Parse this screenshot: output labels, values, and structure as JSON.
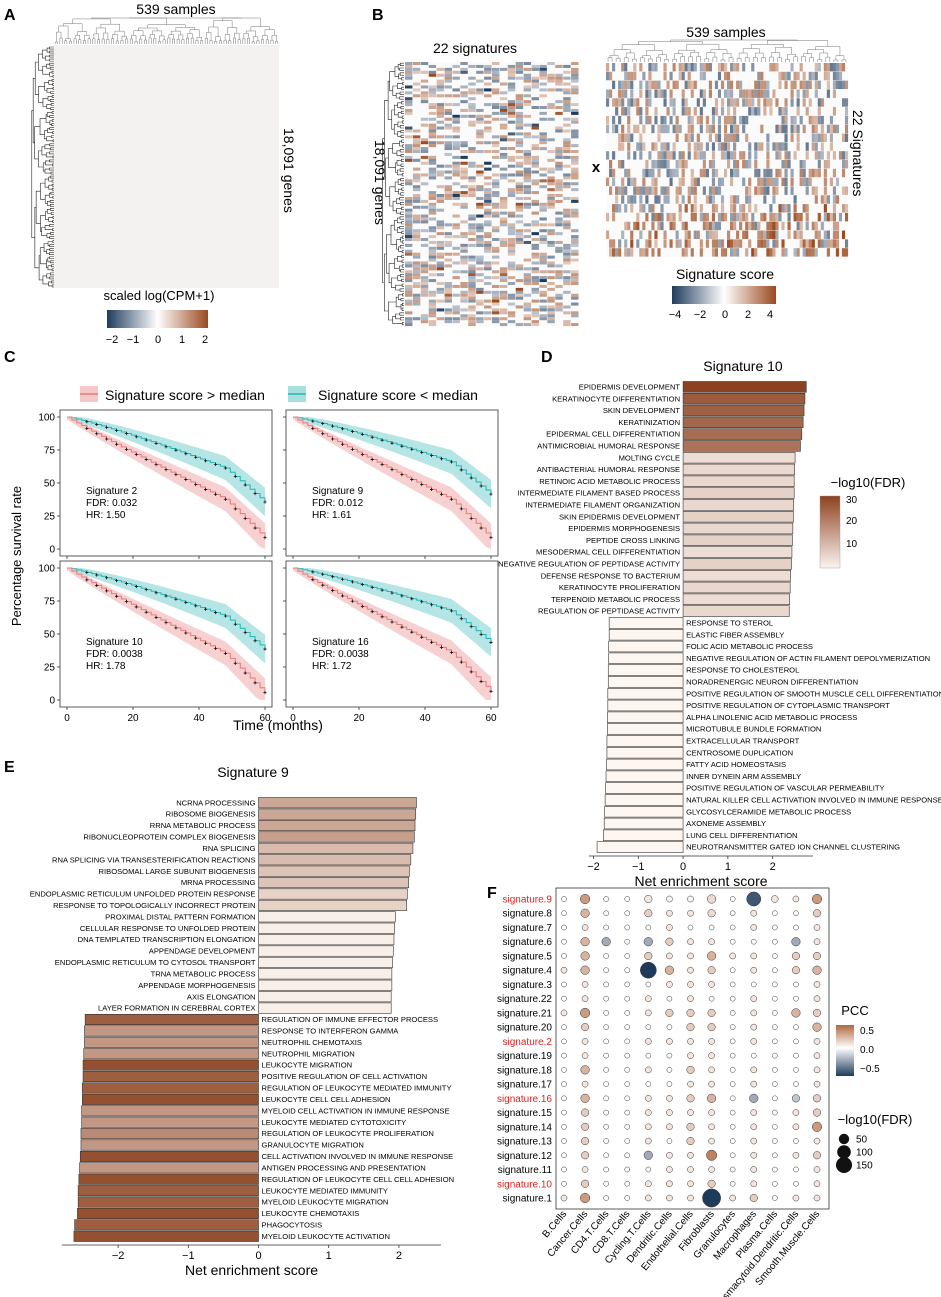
{
  "panels": {
    "A": {
      "letter": "A",
      "top_label": "539 samples",
      "side_label": "18,091 genes",
      "colorbar_title": "scaled log(CPM+1)",
      "colorbar_ticks": [
        "−2",
        "−1",
        "0",
        "1",
        "2"
      ]
    },
    "B": {
      "letter": "B",
      "left_top_label": "22 signatures",
      "left_side_label": "18,091 genes",
      "operator": "x",
      "right_top_label": "539 samples",
      "right_side_label": "22 Signatures",
      "colorbar_title": "Signature score",
      "colorbar_ticks": [
        "−4",
        "−2",
        "0",
        "2",
        "4"
      ]
    },
    "C": {
      "letter": "C",
      "legend": [
        "Signature score > median",
        "Signature score < median"
      ],
      "ylabel": "Percentage survival rate",
      "xlabel": "Time (months)",
      "yticks": [
        "100",
        "75",
        "50",
        "25",
        "0"
      ],
      "xticks": [
        "0",
        "20",
        "40",
        "60"
      ],
      "subplots": [
        {
          "name": "Signature 2",
          "fdr": "FDR: 0.032",
          "hr": "HR: 1.50"
        },
        {
          "name": "Signature 9",
          "fdr": "FDR: 0.012",
          "hr": "HR: 1.61"
        },
        {
          "name": "Signature 10",
          "fdr": "FDR: 0.0038",
          "hr": "HR: 1.78"
        },
        {
          "name": "Signature 16",
          "fdr": "FDR: 0.0038",
          "hr": "HR: 1.72"
        }
      ]
    },
    "D": {
      "letter": "D"
    },
    "E": {
      "letter": "E"
    },
    "F": {
      "letter": "F"
    }
  },
  "colors": {
    "high": "#e8787a",
    "high_fill": "#f6c9c9",
    "low": "#2bb3b3",
    "low_fill": "#a8e0e0",
    "neg": "#2b4a6f",
    "pos": "#9b4a1f"
  },
  "chart_data": [
    {
      "id": "D",
      "type": "bar",
      "orientation": "horizontal",
      "title": "Signature 10",
      "xlabel": "Net enrichment score",
      "xlim": [
        -2.1,
        2.9
      ],
      "xticks": [
        -2,
        -1,
        0,
        1,
        2
      ],
      "legend_title": "−log10(FDR)",
      "legend_ticks": [
        "30",
        "20",
        "10"
      ],
      "legend_range": [
        3,
        30
      ],
      "categories": [
        "EPIDERMIS DEVELOPMENT",
        "KERATINOCYTE DIFFERENTIATION",
        "SKIN DEVELOPMENT",
        "KERATINIZATION",
        "EPIDERMAL CELL DIFFERENTIATION",
        "ANTIMICROBIAL HUMORAL RESPONSE",
        "MOLTING CYCLE",
        "ANTIBACTERIAL HUMORAL RESPONSE",
        "RETINOIC ACID METABOLIC PROCESS",
        "INTERMEDIATE FILAMENT BASED PROCESS",
        "INTERMEDIATE FILAMENT ORGANIZATION",
        "SKIN EPIDERMIS DEVELOPMENT",
        "EPIDERMIS MORPHOGENESIS",
        "PEPTIDE CROSS LINKING",
        "MESODERMAL CELL DIFFERENTIATION",
        "NEGATIVE REGULATION OF PEPTIDASE ACTIVITY",
        "DEFENSE RESPONSE TO BACTERIUM",
        "KERATINOCYTE PROLIFERATION",
        "TERPENOID METABOLIC PROCESS",
        "REGULATION OF PEPTIDASE ACTIVITY",
        "RESPONSE TO STEROL",
        "ELASTIC FIBER ASSEMBLY",
        "FOLIC ACID METABOLIC PROCESS",
        "NEGATIVE REGULATION OF ACTIN FILAMENT DEPOLYMERIZATION",
        "RESPONSE TO CHOLESTEROL",
        "NORADRENERGIC NEURON DIFFERENTIATION",
        "POSITIVE REGULATION OF SMOOTH MUSCLE CELL DIFFERENTIATION",
        "POSITIVE REGULATION OF CYTOPLASMIC TRANSPORT",
        "ALPHA LINOLENIC ACID METABOLIC PROCESS",
        "MICROTUBULE BUNDLE FORMATION",
        "EXTRACELLULAR TRANSPORT",
        "CENTROSOME DUPLICATION",
        "FATTY ACID HOMEOSTASIS",
        "INNER DYNEIN ARM ASSEMBLY",
        "POSITIVE REGULATION OF VASCULAR PERMEABILITY",
        "NATURAL KILLER CELL ACTIVATION INVOLVED IN IMMUNE RESPONSE",
        "GLYCOSYLCERAMIDE METABOLIC PROCESS",
        "AXONEME ASSEMBLY",
        "LUNG CELL DIFFERENTIATION",
        "NEUROTRANSMITTER GATED ION CHANNEL CLUSTERING"
      ],
      "values": [
        2.75,
        2.72,
        2.7,
        2.68,
        2.65,
        2.62,
        2.5,
        2.49,
        2.48,
        2.48,
        2.47,
        2.46,
        2.45,
        2.44,
        2.43,
        2.42,
        2.4,
        2.39,
        2.38,
        2.37,
        -1.65,
        -1.65,
        -1.66,
        -1.66,
        -1.67,
        -1.67,
        -1.68,
        -1.68,
        -1.69,
        -1.69,
        -1.7,
        -1.7,
        -1.71,
        -1.72,
        -1.73,
        -1.74,
        -1.75,
        -1.76,
        -1.78,
        -1.92
      ],
      "fdr": [
        30,
        26,
        25,
        24,
        23,
        22,
        5,
        6,
        6,
        7,
        6,
        7,
        6,
        7,
        5,
        7,
        5,
        6,
        5,
        6,
        1,
        1,
        1,
        1,
        1,
        1,
        1,
        1,
        1,
        1,
        1,
        1,
        1,
        1,
        1,
        1,
        1,
        1,
        1,
        1
      ]
    },
    {
      "id": "E",
      "type": "bar",
      "orientation": "horizontal",
      "title": "Signature 9",
      "xlabel": "Net enrichment score",
      "xlim": [
        -2.8,
        2.6
      ],
      "xticks": [
        -2,
        -1,
        0,
        1,
        2
      ],
      "categories": [
        "NCRNA PROCESSING",
        "RIBOSOME BIOGENESIS",
        "RRNA METABOLIC PROCESS",
        "RIBONUCLEOPROTEIN COMPLEX BIOGENESIS",
        "RNA SPLICING",
        "RNA SPLICING VIA TRANSESTERIFICATION REACTIONS",
        "RIBOSOMAL LARGE SUBUNIT BIOGENESIS",
        "MRNA PROCESSING",
        "ENDOPLASMIC RETICULUM UNFOLDED PROTEIN RESPONSE",
        "RESPONSE TO TOPOLOGICALLY INCORRECT PROTEIN",
        "PROXIMAL DISTAL PATTERN FORMATION",
        "CELLULAR RESPONSE TO UNFOLDED PROTEIN",
        "DNA TEMPLATED TRANSCRIPTION ELONGATION",
        "APPENDAGE DEVELOPMENT",
        "ENDOPLASMIC RETICULUM TO CYTOSOL TRANSPORT",
        "TRNA METABOLIC PROCESS",
        "APPENDAGE MORPHOGENESIS",
        "AXIS ELONGATION",
        "LAYER FORMATION IN CEREBRAL CORTEX",
        "REGULATION OF IMMUNE EFFECTOR PROCESS",
        "RESPONSE TO INTERFERON GAMMA",
        "NEUTROPHIL CHEMOTAXIS",
        "NEUTROPHIL MIGRATION",
        "LEUKOCYTE MIGRATION",
        "POSITIVE REGULATION OF CELL ACTIVATION",
        "REGULATION OF LEUKOCYTE MEDIATED IMMUNITY",
        "LEUKOCYTE CELL CELL ADHESION",
        "MYELOID CELL ACTIVATION IN IMMUNE RESPONSE",
        "LEUKOCYTE MEDIATED CYTOTOXICITY",
        "REGULATION OF LEUKOCYTE PROLIFERATION",
        "GRANULOCYTE MIGRATION",
        "CELL ACTIVATION INVOLVED IN IMMUNE RESPONSE",
        "ANTIGEN PROCESSING AND PRESENTATION",
        "REGULATION OF LEUKOCYTE CELL CELL ADHESION",
        "LEUKOCYTE MEDIATED IMMUNITY",
        "MYELOID LEUKOCYTE MIGRATION",
        "LEUKOCYTE CHEMOTAXIS",
        "PHAGOCYTOSIS",
        "MYELOID LEUKOCYTE ACTIVATION"
      ],
      "values": [
        2.25,
        2.24,
        2.23,
        2.22,
        2.2,
        2.17,
        2.15,
        2.14,
        2.12,
        2.11,
        1.95,
        1.94,
        1.93,
        1.92,
        1.91,
        1.9,
        1.9,
        1.89,
        1.89,
        -2.47,
        -2.48,
        -2.48,
        -2.49,
        -2.5,
        -2.5,
        -2.51,
        -2.51,
        -2.52,
        -2.52,
        -2.53,
        -2.53,
        -2.54,
        -2.55,
        -2.56,
        -2.57,
        -2.57,
        -2.58,
        -2.62,
        -2.63
      ],
      "fdr": [
        12,
        12,
        12,
        13,
        9,
        9,
        8,
        8,
        6,
        6,
        2,
        2,
        2,
        2,
        2,
        2,
        2,
        2,
        2,
        22,
        14,
        14,
        14,
        24,
        22,
        22,
        24,
        14,
        14,
        16,
        14,
        24,
        14,
        24,
        22,
        22,
        24,
        22,
        24
      ]
    },
    {
      "id": "F",
      "type": "scatter",
      "subtype": "dot-matrix",
      "rows": [
        "signature.9",
        "signature.8",
        "signature.7",
        "signature.6",
        "signature.5",
        "signature.4",
        "signature.3",
        "signature.22",
        "signature.21",
        "signature.20",
        "signature.2",
        "signature.19",
        "signature.18",
        "signature.17",
        "signature.16",
        "signature.15",
        "signature.14",
        "signature.13",
        "signature.12",
        "signature.11",
        "signature.10",
        "signature.1"
      ],
      "highlighted_rows": [
        "signature.9",
        "signature.2",
        "signature.16",
        "signature.10"
      ],
      "columns": [
        "B.Cells",
        "Cancer.Cells",
        "CD4.T.Cells",
        "CD8.T.Cells",
        "Cycling.T.Cells",
        "Dendritic.Cells",
        "Endothelial.Cells",
        "Fibroblasts",
        "Granulocytes",
        "Macrophages",
        "Plasma.Cells",
        "Plasmacytoid.Dendritic.Cells",
        "Smooth.Muscle.Cells"
      ],
      "pcc_range": [
        -0.7,
        0.6
      ],
      "color_legend_title": "PCC",
      "color_legend_ticks": [
        "0.5",
        "0.0",
        "−0.5"
      ],
      "size_legend_title": "−log10(FDR)",
      "size_legend_values": [
        50,
        100,
        150
      ],
      "pcc": [
        [
          0,
          0.4,
          0,
          0,
          0.1,
          0.05,
          0.05,
          0.15,
          0,
          -0.6,
          0.1,
          0.1,
          0.4
        ],
        [
          0,
          0.3,
          0,
          0,
          0.2,
          0.1,
          0.1,
          0.15,
          0,
          0.1,
          0,
          0,
          0.2
        ],
        [
          0,
          0.1,
          0,
          0,
          0,
          0.1,
          0,
          0,
          0,
          0.1,
          0,
          0,
          0.1
        ],
        [
          0,
          0.3,
          -0.3,
          0,
          -0.3,
          0.2,
          0.1,
          0.1,
          0,
          0,
          0,
          -0.3,
          0.1
        ],
        [
          0,
          0.3,
          0,
          0,
          0.2,
          0.1,
          0.1,
          0.3,
          0.1,
          0.1,
          0,
          0.2,
          0.2
        ],
        [
          0.1,
          0.3,
          0,
          0,
          -0.7,
          0.3,
          0.1,
          0.2,
          0,
          0.1,
          0,
          0.2,
          0.3
        ],
        [
          0,
          0.1,
          0,
          0,
          0,
          0.1,
          0.1,
          0.1,
          0,
          0,
          0,
          0,
          0.1
        ],
        [
          0,
          0.1,
          0,
          0,
          0.1,
          0,
          0.1,
          0,
          0,
          0.1,
          0,
          0,
          0.1
        ],
        [
          0.1,
          0.4,
          0,
          0,
          0.1,
          0.2,
          0.2,
          0.2,
          0,
          0.1,
          0,
          0.3,
          0.2
        ],
        [
          0,
          0.2,
          0,
          0,
          0,
          0,
          0.2,
          0.2,
          0,
          0.1,
          0,
          0,
          0.3
        ],
        [
          0,
          0.1,
          0,
          0,
          0.1,
          0.1,
          0.1,
          0.1,
          0,
          0.1,
          0,
          0,
          0.1
        ],
        [
          0,
          0.1,
          0,
          0,
          0,
          0,
          0.1,
          0.1,
          0,
          0,
          0,
          0,
          0.1
        ],
        [
          0,
          0.3,
          0,
          0,
          0.1,
          0,
          0.2,
          0.1,
          0,
          0.1,
          0,
          0,
          0.1
        ],
        [
          0,
          0.1,
          0,
          0,
          0,
          0,
          0.1,
          0.1,
          0,
          0.1,
          0,
          0,
          0.1
        ],
        [
          0,
          0.3,
          0,
          0,
          0.1,
          0.1,
          0.2,
          0.3,
          0,
          -0.3,
          0,
          -0.2,
          0.2
        ],
        [
          0,
          0.2,
          0,
          0,
          0.1,
          0.1,
          0.1,
          0.1,
          0,
          0.1,
          0,
          0.1,
          0.2
        ],
        [
          0,
          0.2,
          0,
          0,
          0.1,
          0.1,
          0.2,
          0.1,
          0,
          0.1,
          0,
          0.1,
          0.4
        ],
        [
          0,
          0.2,
          0,
          0,
          0.1,
          0,
          0.2,
          0.1,
          0,
          0.1,
          0,
          0,
          0.1
        ],
        [
          0,
          0.2,
          0,
          0,
          -0.3,
          0.1,
          0.1,
          0.5,
          0,
          0.1,
          0,
          0.1,
          0.2
        ],
        [
          0,
          0.1,
          0,
          0,
          0,
          0.1,
          0.1,
          0.1,
          0,
          0.1,
          0,
          0,
          0.1
        ],
        [
          0,
          0.2,
          0,
          0,
          0.1,
          0.1,
          0.1,
          0.2,
          0,
          0.1,
          0,
          0,
          0.1
        ],
        [
          0.1,
          0.4,
          0,
          0,
          0.1,
          0.1,
          0.1,
          -0.7,
          0.1,
          0.2,
          0,
          0.1,
          0.1
        ]
      ],
      "fdr": [
        [
          5,
          40,
          5,
          5,
          20,
          10,
          10,
          30,
          5,
          110,
          15,
          10,
          40
        ],
        [
          5,
          30,
          5,
          5,
          20,
          10,
          10,
          20,
          5,
          10,
          5,
          5,
          20
        ],
        [
          5,
          10,
          5,
          5,
          5,
          10,
          5,
          5,
          5,
          10,
          5,
          5,
          10
        ],
        [
          5,
          30,
          30,
          5,
          30,
          20,
          10,
          10,
          5,
          5,
          5,
          30,
          10
        ],
        [
          5,
          30,
          5,
          5,
          20,
          10,
          10,
          30,
          10,
          10,
          5,
          20,
          20
        ],
        [
          10,
          30,
          5,
          5,
          150,
          30,
          10,
          20,
          5,
          10,
          5,
          20,
          30
        ],
        [
          5,
          10,
          5,
          5,
          5,
          10,
          10,
          10,
          5,
          5,
          5,
          5,
          10
        ],
        [
          5,
          10,
          5,
          5,
          10,
          5,
          10,
          5,
          5,
          10,
          5,
          5,
          10
        ],
        [
          10,
          40,
          5,
          5,
          10,
          20,
          20,
          20,
          5,
          10,
          5,
          30,
          20
        ],
        [
          5,
          20,
          5,
          5,
          5,
          5,
          20,
          20,
          5,
          10,
          5,
          5,
          30
        ],
        [
          5,
          10,
          5,
          5,
          10,
          10,
          10,
          10,
          5,
          10,
          5,
          5,
          10
        ],
        [
          5,
          10,
          5,
          5,
          5,
          5,
          10,
          10,
          5,
          5,
          5,
          5,
          10
        ],
        [
          5,
          30,
          5,
          5,
          10,
          5,
          20,
          10,
          5,
          10,
          5,
          5,
          10
        ],
        [
          5,
          10,
          5,
          5,
          5,
          5,
          10,
          10,
          5,
          10,
          5,
          5,
          10
        ],
        [
          5,
          30,
          5,
          5,
          10,
          10,
          20,
          30,
          5,
          30,
          5,
          20,
          20
        ],
        [
          5,
          20,
          5,
          5,
          10,
          10,
          10,
          10,
          5,
          10,
          5,
          10,
          20
        ],
        [
          5,
          20,
          5,
          5,
          10,
          10,
          20,
          10,
          5,
          10,
          5,
          10,
          40
        ],
        [
          5,
          20,
          5,
          5,
          10,
          5,
          20,
          10,
          5,
          10,
          5,
          5,
          10
        ],
        [
          5,
          20,
          5,
          5,
          30,
          10,
          10,
          50,
          5,
          10,
          5,
          10,
          20
        ],
        [
          5,
          10,
          5,
          5,
          5,
          10,
          10,
          10,
          5,
          10,
          5,
          5,
          10
        ],
        [
          5,
          20,
          5,
          5,
          10,
          10,
          10,
          20,
          5,
          10,
          5,
          5,
          10
        ],
        [
          10,
          40,
          5,
          5,
          10,
          10,
          10,
          200,
          10,
          20,
          5,
          10,
          10
        ]
      ]
    }
  ]
}
